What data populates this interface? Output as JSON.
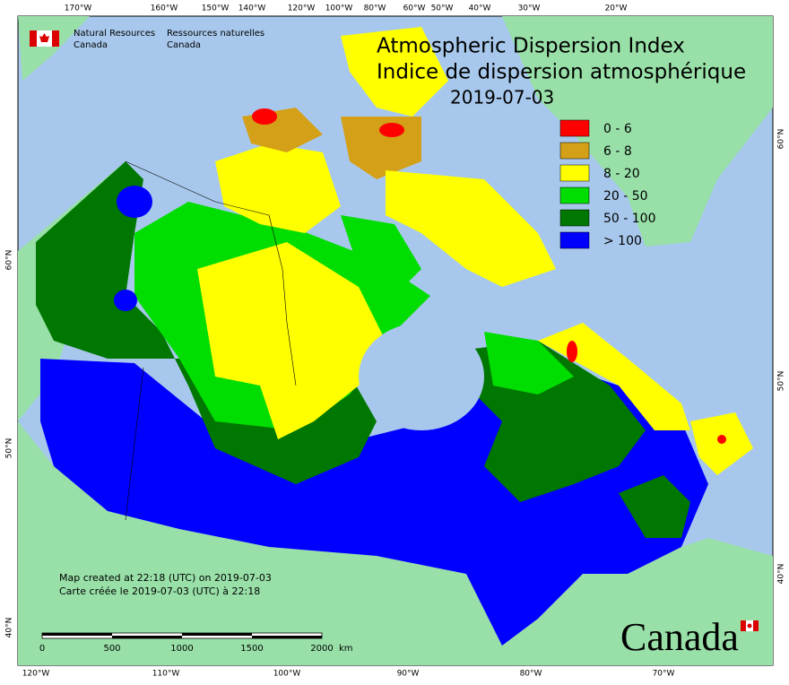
{
  "header": {
    "title_en": "Atmospheric Dispersion Index",
    "title_fr": "Indice de dispersion atmosphérique",
    "date": "2019-07-03"
  },
  "agency": {
    "en": [
      "Natural Resources",
      "Canada"
    ],
    "fr": [
      "Ressources naturelles",
      "Canada"
    ]
  },
  "legend": {
    "items": [
      {
        "label": "0 - 6",
        "color": "#ff0000"
      },
      {
        "label": "6 - 8",
        "color": "#d4a017"
      },
      {
        "label": "8 - 20",
        "color": "#ffff00"
      },
      {
        "label": "20 - 50",
        "color": "#00dd00"
      },
      {
        "label": "50 - 100",
        "color": "#007700"
      },
      {
        "label": "> 100",
        "color": "#0000ff"
      }
    ]
  },
  "credits": [
    "Map created at 22:18 (UTC) on 2019-07-03",
    "Carte créée le 2019-07-03 (UTC) à 22:18"
  ],
  "scale": {
    "ticks": [
      0,
      500,
      1000,
      1500,
      2000
    ],
    "unit": "km"
  },
  "graticule": {
    "top": [
      "170°W",
      "160°W",
      "150°W",
      "140°W",
      "120°W",
      "100°W",
      "80°W",
      "60°W",
      "50°W",
      "40°W",
      "30°W",
      "20°W"
    ],
    "bottom": [
      "120°W",
      "110°W",
      "100°W",
      "90°W",
      "80°W",
      "70°W"
    ],
    "left": [
      "60°N",
      "50°N",
      "40°N"
    ],
    "right": [
      "60°N",
      "50°N",
      "40°N"
    ]
  },
  "wordmark": "Canada"
}
